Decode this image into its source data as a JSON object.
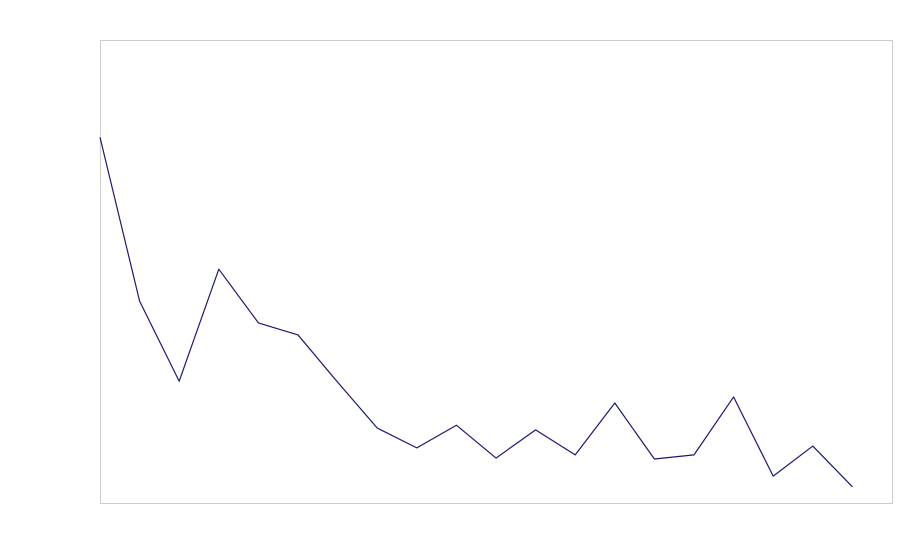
{
  "chart_data": {
    "type": "line",
    "x": [
      0,
      1,
      2,
      3,
      4,
      5,
      6,
      7,
      8,
      9,
      10,
      11,
      12,
      13,
      14,
      15,
      16,
      17,
      18,
      19
    ],
    "values": [
      79.0,
      43.6,
      26.3,
      50.5,
      38.9,
      36.3,
      26.1,
      16.2,
      11.9,
      16.8,
      9.7,
      15.8,
      10.4,
      21.6,
      9.5,
      10.4,
      22.9,
      5.8,
      12.3,
      3.5
    ],
    "color": "#191970",
    "xlim": [
      0,
      20
    ],
    "ylim": [
      0,
      100
    ],
    "frame_color": "#cccccc"
  }
}
